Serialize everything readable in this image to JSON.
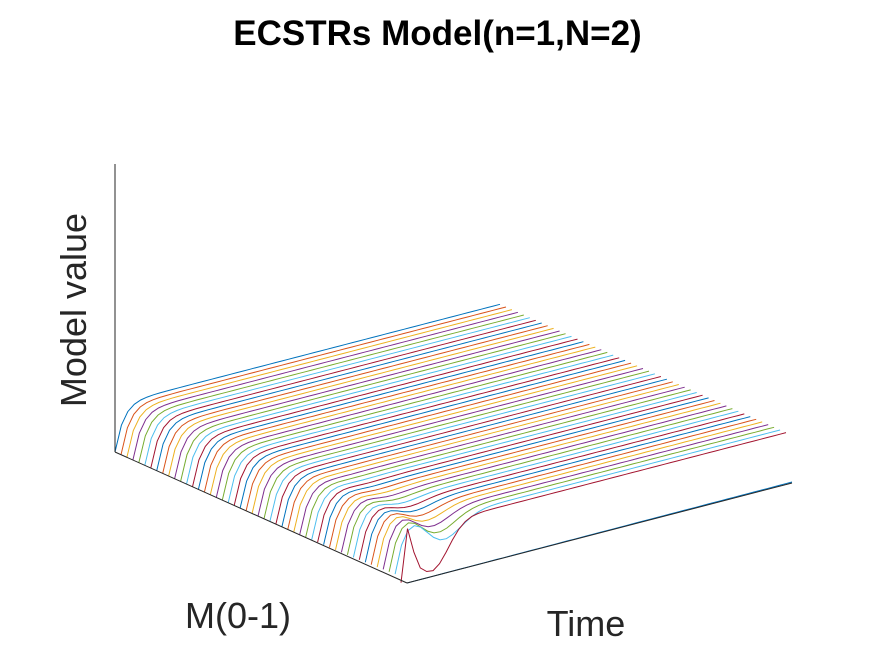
{
  "chart_data": {
    "type": "line",
    "title": "ECSTRs Model(n=1,N=2)",
    "xlabel": "Time",
    "ylabel": "M(0-1)",
    "zlabel": "Model value",
    "view": "3d-waterfall",
    "grid": false,
    "ticks": false,
    "series_count": 50,
    "model": {
      "n": 1,
      "N": 2
    },
    "colors": [
      "#0072BD",
      "#D95319",
      "#EDB120",
      "#7E2F8E",
      "#77AC30",
      "#4DBEEE",
      "#A2142F"
    ]
  }
}
